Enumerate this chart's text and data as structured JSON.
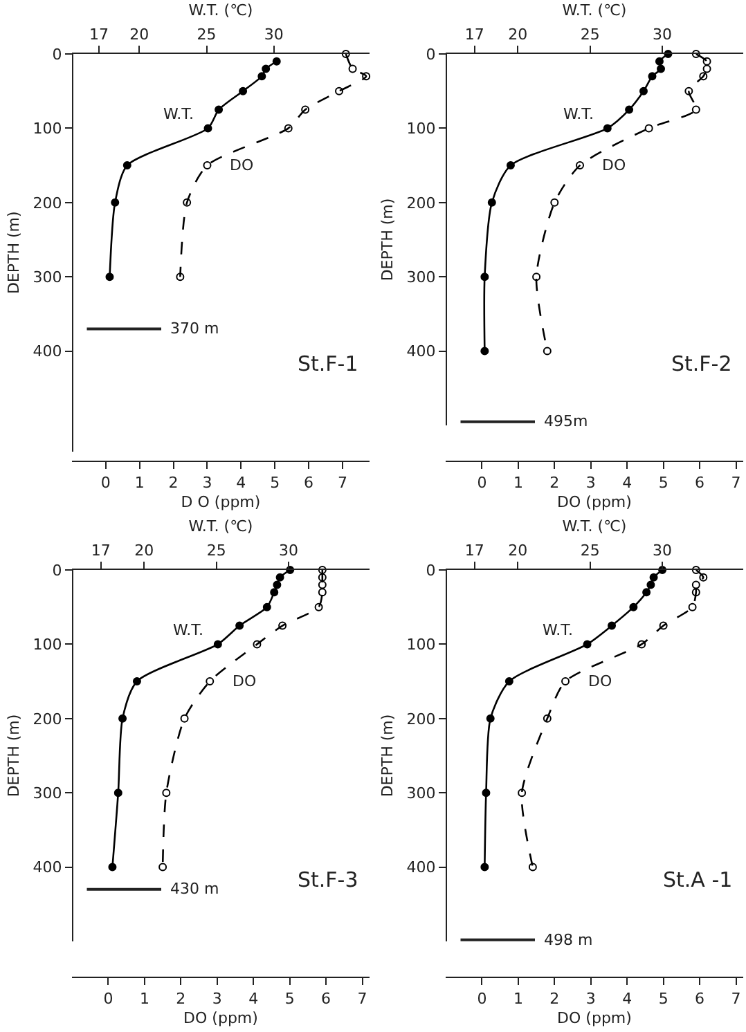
{
  "chart_data": [
    {
      "type": "line",
      "xlabel": "D O (ppm)",
      "x2label": "W.T. (℃)",
      "ylabel": "DEPTH (m)",
      "xlim": [
        -1,
        7.8
      ],
      "xticks": [
        0,
        1,
        2,
        3,
        4,
        5,
        6,
        7
      ],
      "x2lim": [
        15,
        37.1
      ],
      "x2ticks": [
        17,
        20,
        25,
        30
      ],
      "ylim": [
        535,
        0
      ],
      "yticks": [
        0,
        100,
        200,
        300,
        400
      ],
      "marker": "circle",
      "annotations": [
        "St.F-1"
      ],
      "ref_lines": [
        {
          "axis": "y",
          "value": 370,
          "label": "370 m"
        }
      ],
      "series": [
        {
          "name": "W.T.",
          "axis": "x2",
          "color": "#000000",
          "line_style": "solid",
          "x": [
            30.2,
            29.4,
            29.1,
            27.7,
            25.9,
            25.1,
            19.1,
            18.2,
            17.8
          ],
          "values": [
            10,
            20,
            30,
            50,
            75,
            100,
            150,
            200,
            300
          ]
        },
        {
          "name": "DO",
          "color": "#000000",
          "line_style": "dashed",
          "x": [
            7.1,
            7.3,
            7.7,
            6.9,
            5.9,
            5.4,
            3.0,
            2.4,
            2.2
          ],
          "values": [
            0,
            20,
            30,
            50,
            75,
            100,
            150,
            200,
            300
          ]
        }
      ]
    },
    {
      "type": "line",
      "xlabel": "DO (ppm)",
      "x2label": "W.T. (℃)",
      "ylabel": "DEPTH (m)",
      "xlim": [
        -1,
        7.2
      ],
      "xticks": [
        0,
        1,
        2,
        3,
        4,
        5,
        6,
        7
      ],
      "x2lim": [
        15,
        35.6
      ],
      "x2ticks": [
        17,
        20,
        25,
        30
      ],
      "ylim": [
        500,
        0
      ],
      "yticks": [
        0,
        100,
        200,
        300,
        400
      ],
      "marker": "circle",
      "annotations": [
        "St.F-2"
      ],
      "ref_lines": [
        {
          "axis": "y",
          "value": 495,
          "label": "495m"
        }
      ],
      "series": [
        {
          "name": "W.T.",
          "axis": "x2",
          "color": "#000000",
          "line_style": "solid",
          "x": [
            30.4,
            29.8,
            29.9,
            29.3,
            28.7,
            27.7,
            26.2,
            19.5,
            18.2,
            17.7,
            17.7
          ],
          "values": [
            0,
            10,
            20,
            30,
            50,
            75,
            100,
            150,
            200,
            300,
            400
          ]
        },
        {
          "name": "DO",
          "color": "#000000",
          "line_style": "dashed",
          "x": [
            5.9,
            6.2,
            6.2,
            6.1,
            5.7,
            5.9,
            4.6,
            2.7,
            2.0,
            1.5,
            1.8
          ],
          "values": [
            0,
            10,
            20,
            30,
            50,
            75,
            100,
            150,
            200,
            300,
            400
          ]
        }
      ]
    },
    {
      "type": "line",
      "xlabel": "DO (ppm)",
      "x2label": "W.T. (℃)",
      "ylabel": "DEPTH (m)",
      "xlim": [
        -1,
        7.2
      ],
      "xticks": [
        0,
        1,
        2,
        3,
        4,
        5,
        6,
        7
      ],
      "x2lim": [
        15,
        35.6
      ],
      "x2ticks": [
        17,
        20,
        25,
        30
      ],
      "ylim": [
        500,
        0
      ],
      "yticks": [
        0,
        100,
        200,
        300,
        400
      ],
      "marker": "circle",
      "annotations": [
        "St.F-3"
      ],
      "ref_lines": [
        {
          "axis": "y",
          "value": 430,
          "label": "430 m"
        }
      ],
      "series": [
        {
          "name": "W.T.",
          "axis": "x2",
          "color": "#000000",
          "line_style": "solid",
          "x": [
            30.1,
            29.4,
            29.2,
            29.0,
            28.5,
            26.6,
            25.1,
            19.5,
            18.5,
            18.2,
            17.8
          ],
          "values": [
            0,
            10,
            20,
            30,
            50,
            75,
            100,
            150,
            200,
            300,
            400
          ]
        },
        {
          "name": "DO",
          "color": "#000000",
          "line_style": "dashed",
          "x": [
            5.9,
            5.9,
            5.9,
            5.9,
            5.8,
            4.8,
            4.1,
            2.8,
            2.1,
            1.6,
            1.5
          ],
          "values": [
            0,
            10,
            20,
            30,
            50,
            75,
            100,
            150,
            200,
            300,
            400
          ]
        }
      ]
    },
    {
      "type": "line",
      "xlabel": "DO (ppm)",
      "x2label": "W.T. (℃)",
      "ylabel": "DEPTH (m)",
      "xlim": [
        -1,
        7.2
      ],
      "xticks": [
        0,
        1,
        2,
        3,
        4,
        5,
        6,
        7
      ],
      "x2lim": [
        15,
        35.6
      ],
      "x2ticks": [
        17,
        20,
        25,
        30
      ],
      "ylim": [
        500,
        0
      ],
      "yticks": [
        0,
        100,
        200,
        300,
        400
      ],
      "marker": "circle",
      "annotations": [
        "St.A -1"
      ],
      "ref_lines": [
        {
          "axis": "y",
          "value": 498,
          "label": "498 m"
        }
      ],
      "series": [
        {
          "name": "W.T.",
          "axis": "x2",
          "color": "#000000",
          "line_style": "solid",
          "x": [
            30.0,
            29.4,
            29.2,
            28.9,
            28.0,
            26.5,
            24.8,
            19.4,
            18.1,
            17.8,
            17.7
          ],
          "values": [
            0,
            10,
            20,
            30,
            50,
            75,
            100,
            150,
            200,
            300,
            400
          ]
        },
        {
          "name": "DO",
          "color": "#000000",
          "line_style": "dashed",
          "x": [
            5.9,
            6.1,
            5.9,
            5.9,
            5.8,
            5.0,
            4.4,
            2.3,
            1.8,
            1.1,
            1.4
          ],
          "values": [
            0,
            10,
            20,
            30,
            50,
            75,
            100,
            150,
            200,
            300,
            400
          ]
        }
      ]
    }
  ]
}
